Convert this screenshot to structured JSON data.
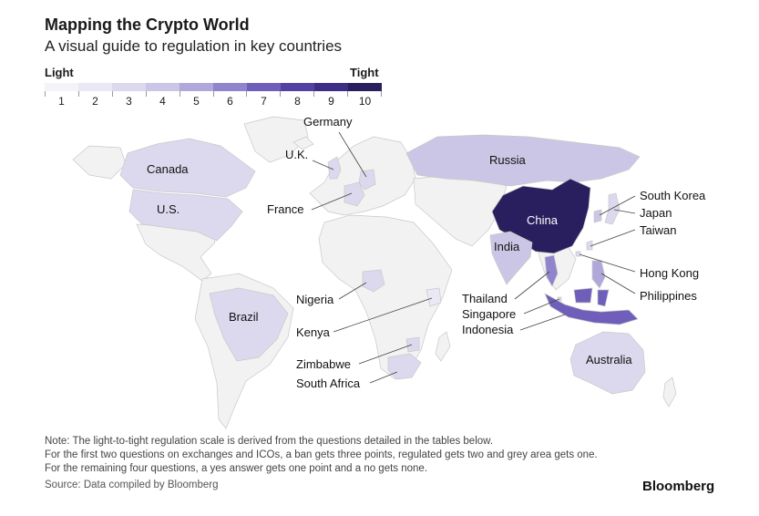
{
  "header": {
    "title": "Mapping the Crypto World",
    "subtitle": "A visual guide to regulation in key countries"
  },
  "legend": {
    "left_label": "Light",
    "right_label": "Tight",
    "levels": [
      {
        "value": "1",
        "color": "#f4f3fa"
      },
      {
        "value": "2",
        "color": "#eae8f5"
      },
      {
        "value": "3",
        "color": "#dcd9ee"
      },
      {
        "value": "4",
        "color": "#cbc6e6"
      },
      {
        "value": "5",
        "color": "#b0a8db"
      },
      {
        "value": "6",
        "color": "#9084cc"
      },
      {
        "value": "7",
        "color": "#6f5fba"
      },
      {
        "value": "8",
        "color": "#5341a4"
      },
      {
        "value": "9",
        "color": "#3d2d86"
      },
      {
        "value": "10",
        "color": "#2a1f5e"
      }
    ]
  },
  "countries": {
    "canada": {
      "label": "Canada",
      "color": "#dcd9ee"
    },
    "us": {
      "label": "U.S.",
      "color": "#dcd9ee"
    },
    "brazil": {
      "label": "Brazil",
      "color": "#dcd9ee"
    },
    "germany": {
      "label": "Germany",
      "color": "#dcd9ee"
    },
    "uk": {
      "label": "U.K.",
      "color": "#dcd9ee"
    },
    "france": {
      "label": "France",
      "color": "#dcd9ee"
    },
    "russia": {
      "label": "Russia",
      "color": "#cbc6e6"
    },
    "china": {
      "label": "China",
      "color": "#2a1f5e"
    },
    "india": {
      "label": "India",
      "color": "#cbc6e6"
    },
    "south_korea": {
      "label": "South Korea",
      "color": "#cbc6e6"
    },
    "japan": {
      "label": "Japan",
      "color": "#dcd9ee"
    },
    "taiwan": {
      "label": "Taiwan",
      "color": "#dcd9ee"
    },
    "hong_kong": {
      "label": "Hong Kong",
      "color": "#dcd9ee"
    },
    "philippines": {
      "label": "Philippines",
      "color": "#b0a8db"
    },
    "thailand": {
      "label": "Thailand",
      "color": "#9084cc"
    },
    "singapore": {
      "label": "Singapore",
      "color": "#dcd9ee"
    },
    "indonesia": {
      "label": "Indonesia",
      "color": "#6f5fba"
    },
    "australia": {
      "label": "Australia",
      "color": "#dcd9ee"
    },
    "nigeria": {
      "label": "Nigeria",
      "color": "#dcd9ee"
    },
    "kenya": {
      "label": "Kenya",
      "color": "#eae8f5"
    },
    "zimbabwe": {
      "label": "Zimbabwe",
      "color": "#dcd9ee"
    },
    "south_africa": {
      "label": "South Africa",
      "color": "#dcd9ee"
    }
  },
  "base_land_color": "#f2f2f2",
  "border_color": "#c8c8c8",
  "footer": {
    "note_lines": [
      "Note: The light-to-tight regulation scale is derived from the questions detailed in the tables below.",
      "For the first two questions on exchanges and ICOs, a ban gets three points, regulated gets two and grey area gets one.",
      "For the remaining four questions, a yes answer gets one point and a no gets none."
    ],
    "source": "Source: Data compiled by Bloomberg",
    "brand": "Bloomberg"
  }
}
